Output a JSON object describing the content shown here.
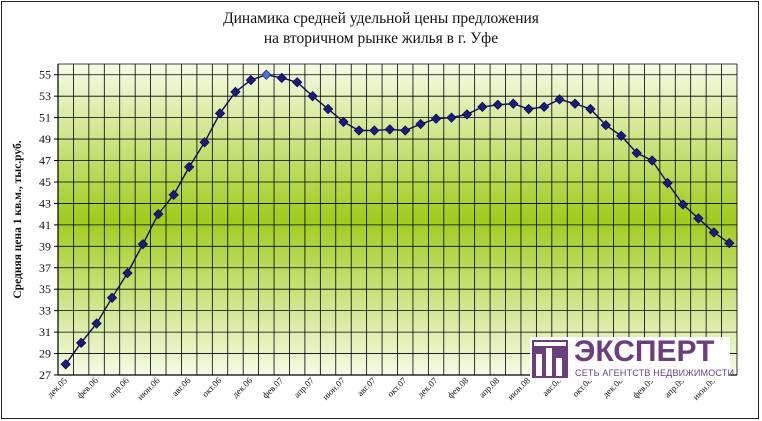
{
  "chart_data": {
    "type": "line",
    "title_lines": [
      "Динамика средней удельной цены предложения",
      "на вторичном рынке жилья в г. Уфе"
    ],
    "xlabel": "",
    "ylabel": "Средняя цена 1 кв.м., тыс.руб.",
    "ylim": [
      27,
      56
    ],
    "yticks": [
      27,
      29,
      31,
      33,
      35,
      37,
      39,
      41,
      43,
      45,
      47,
      49,
      51,
      53,
      55
    ],
    "grid": true,
    "x_tick_labels": [
      "дек.05",
      "фев.06",
      "апр.06",
      "июн.06",
      "авг.06",
      "окт.06",
      "дек.06",
      "фев.07",
      "апр.07",
      "июн.07",
      "авг.07",
      "окт.07",
      "дек.07",
      "фев.08",
      "апр.08",
      "июн.08",
      "авг.08",
      "окт.08",
      "дек.08",
      "фев.09",
      "апр.09",
      "июн.09"
    ],
    "x": [
      "дек.05",
      "янв.06",
      "фев.06",
      "мар.06",
      "апр.06",
      "май.06",
      "июн.06",
      "июл.06",
      "авг.06",
      "сен.06",
      "окт.06",
      "ноя.06",
      "дек.06",
      "янв.07",
      "фев.07",
      "мар.07",
      "апр.07",
      "май.07",
      "июн.07",
      "июл.07",
      "авг.07",
      "сен.07",
      "окт.07",
      "ноя.07",
      "дек.07",
      "янв.08",
      "фев.08",
      "мар.08",
      "апр.08",
      "май.08",
      "июн.08",
      "июл.08",
      "авг.08",
      "сен.08",
      "окт.08",
      "ноя.08",
      "дек.08",
      "янв.09",
      "фев.09",
      "мар.09",
      "апр.09",
      "май.09",
      "июн.09",
      "июл.09"
    ],
    "series": [
      {
        "values": [
          28.0,
          30.0,
          31.8,
          34.2,
          36.5,
          39.2,
          42.0,
          43.8,
          46.4,
          48.7,
          51.4,
          53.4,
          54.5,
          55.0,
          54.7,
          54.3,
          53.0,
          51.8,
          50.6,
          49.8,
          49.8,
          49.9,
          49.8,
          50.4,
          50.9,
          51.0,
          51.3,
          52.0,
          52.2,
          52.3,
          51.8,
          52.0,
          52.7,
          52.3,
          51.8,
          50.3,
          49.3,
          47.7,
          47.0,
          44.9,
          42.9,
          41.6,
          40.3,
          39.3
        ]
      }
    ],
    "highlight_index": 13,
    "colors": {
      "line": "#0a0a55",
      "marker": "#1b1b7a",
      "highlight_marker": "#5b6fd0",
      "bg_edge": "#f6fbe7",
      "bg_center": "#a0cc1e",
      "grid": "#000000"
    }
  },
  "logo": {
    "name": "ЭКСПЕРТ",
    "tagline": "СЕТЬ АГЕНТСТВ НЕДВИЖИМОСТИ"
  }
}
